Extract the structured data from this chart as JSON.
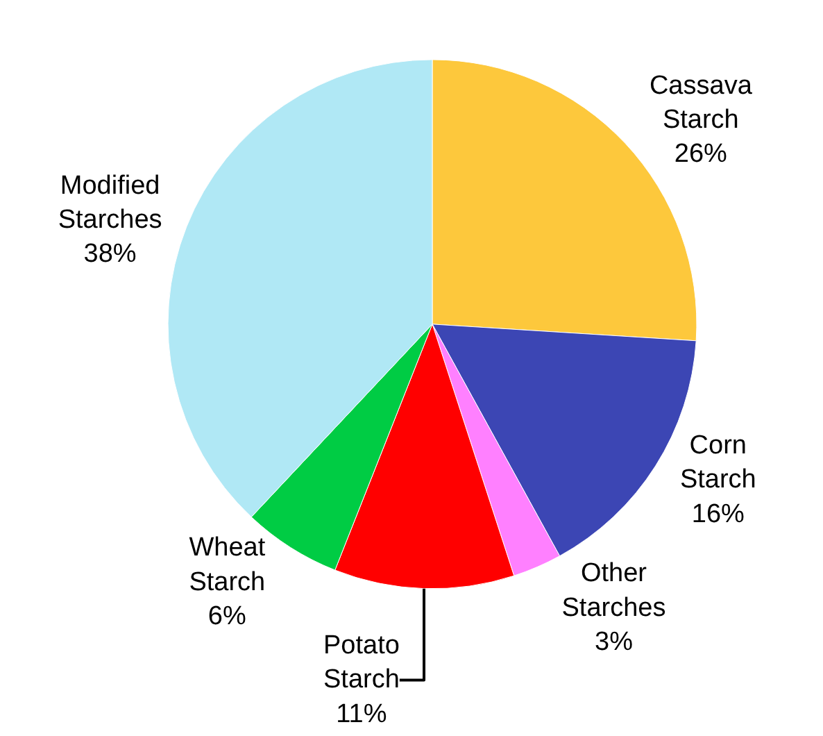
{
  "chart_data": {
    "type": "pie",
    "categories": [
      "Cassava Starch",
      "Corn Starch",
      "Other Starches",
      "Potato Starch",
      "Wheat Starch",
      "Modified Starches"
    ],
    "values": [
      26,
      16,
      3,
      11,
      6,
      38
    ],
    "value_labels": [
      "26%",
      "16%",
      "3%",
      "11%",
      "6%",
      "38%"
    ],
    "colors": [
      "#fdc83c",
      "#3c46b4",
      "#ff80ff",
      "#ff0000",
      "#00cc44",
      "#b0e8f5"
    ],
    "legend": false
  }
}
